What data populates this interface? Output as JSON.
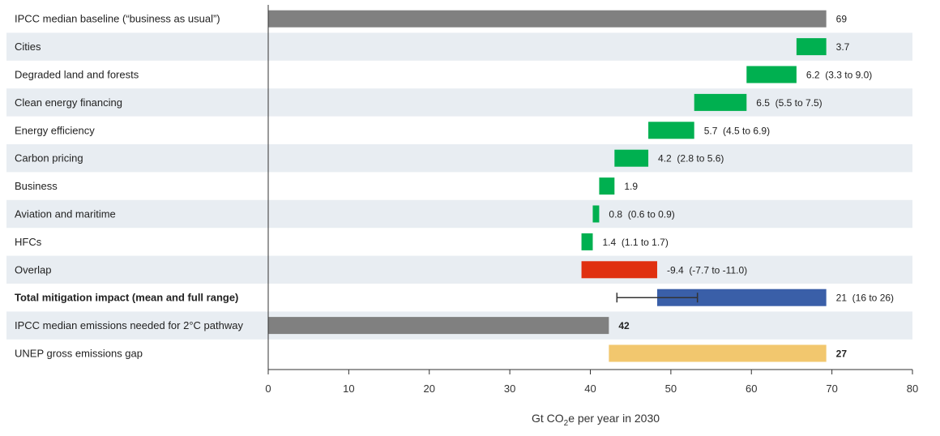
{
  "chart_data": {
    "type": "bar",
    "subtype": "waterfall",
    "xlabel": "Gt CO2e per year in 2030",
    "xlim": [
      0,
      80
    ],
    "xticks": [
      0,
      10,
      20,
      30,
      40,
      50,
      60,
      70,
      80
    ],
    "rows": [
      {
        "label": "IPCC median baseline (“business as usual”)",
        "start": 0,
        "end": 69.3,
        "value_label": "69",
        "color": "#808080",
        "bold": false,
        "label_bold": false
      },
      {
        "label": "Cities",
        "start": 65.6,
        "end": 69.3,
        "value_label": "3.7",
        "color": "#00b050",
        "bold": false,
        "label_bold": false
      },
      {
        "label": "Degraded land and forests",
        "start": 59.4,
        "end": 65.6,
        "value_label": "6.2  (3.3 to 9.0)",
        "color": "#00b050",
        "bold": false,
        "label_bold": false
      },
      {
        "label": "Clean energy financing",
        "start": 52.9,
        "end": 59.4,
        "value_label": "6.5  (5.5 to 7.5)",
        "color": "#00b050",
        "bold": false,
        "label_bold": false
      },
      {
        "label": "Energy efficiency",
        "start": 47.2,
        "end": 52.9,
        "value_label": "5.7  (4.5 to 6.9)",
        "color": "#00b050",
        "bold": false,
        "label_bold": false
      },
      {
        "label": "Carbon pricing",
        "start": 43.0,
        "end": 47.2,
        "value_label": "4.2  (2.8 to 5.6)",
        "color": "#00b050",
        "bold": false,
        "label_bold": false
      },
      {
        "label": "Business",
        "start": 41.1,
        "end": 43.0,
        "value_label": "1.9",
        "color": "#00b050",
        "bold": false,
        "label_bold": false
      },
      {
        "label": "Aviation and maritime",
        "start": 40.3,
        "end": 41.1,
        "value_label": "0.8  (0.6 to 0.9)",
        "color": "#00b050",
        "bold": false,
        "label_bold": false
      },
      {
        "label": "HFCs",
        "start": 38.9,
        "end": 40.3,
        "value_label": "1.4  (1.1 to 1.7)",
        "color": "#00b050",
        "bold": false,
        "label_bold": false
      },
      {
        "label": "Overlap",
        "start": 38.9,
        "end": 48.3,
        "value_label": "-9.4  (-7.7 to -11.0)",
        "color": "#e03010",
        "bold": false,
        "label_bold": false
      },
      {
        "label": "Total mitigation impact (mean and full range)",
        "start": 48.3,
        "end": 69.3,
        "value_label": "21  (16 to 26)",
        "color": "#3a5fa8",
        "bold": false,
        "label_bold": true,
        "error_range": [
          43.3,
          53.3
        ]
      },
      {
        "label": "IPCC median emissions needed for 2°C pathway",
        "start": 0,
        "end": 42.3,
        "value_label": "42",
        "color": "#808080",
        "bold": true,
        "label_bold": false
      },
      {
        "label": "UNEP gross emissions gap",
        "start": 42.3,
        "end": 69.3,
        "value_label": "27",
        "color": "#f2c76e",
        "bold": true,
        "label_bold": false
      }
    ]
  },
  "axis": {
    "title_pre": "Gt CO",
    "title_sub": "2",
    "title_post": "e per year in 2030"
  },
  "colors": {
    "stripe": "#e8edf2",
    "axis": "#333333",
    "error_bar": "#333333"
  }
}
